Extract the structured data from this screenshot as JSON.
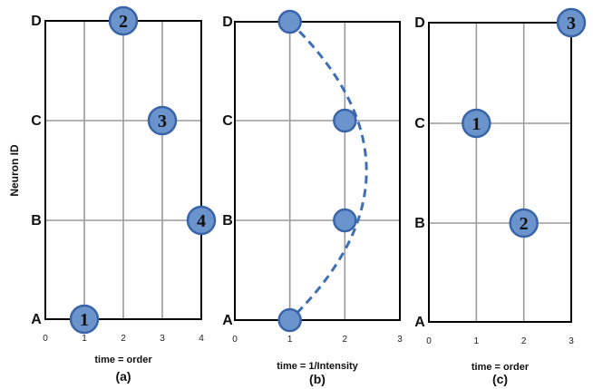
{
  "y_axis_title": "Neuron ID",
  "neurons": [
    "A",
    "B",
    "C",
    "D"
  ],
  "panels": [
    {
      "id": "a",
      "sublabel": "(a)",
      "xlabel": "time = order",
      "x_ticks": [
        "0",
        "1",
        "2",
        "3",
        "4"
      ],
      "x_range": [
        0,
        4
      ],
      "spikes": [
        {
          "neuron": "A",
          "x": 1,
          "label": "1"
        },
        {
          "neuron": "D",
          "x": 2,
          "label": "2"
        },
        {
          "neuron": "C",
          "x": 3,
          "label": "3"
        },
        {
          "neuron": "B",
          "x": 4,
          "label": "4"
        }
      ]
    },
    {
      "id": "b",
      "sublabel": "(b)",
      "xlabel": "time = 1/Intensity",
      "x_ticks": [
        "0",
        "1",
        "2",
        "3"
      ],
      "x_range": [
        0,
        3
      ],
      "curve": "dashed",
      "spikes": [
        {
          "neuron": "A",
          "x": 1,
          "label": ""
        },
        {
          "neuron": "B",
          "x": 2,
          "label": ""
        },
        {
          "neuron": "C",
          "x": 2,
          "label": ""
        },
        {
          "neuron": "D",
          "x": 1,
          "label": ""
        }
      ]
    },
    {
      "id": "c",
      "sublabel": "(c)",
      "xlabel": "time = order",
      "x_ticks": [
        "0",
        "1",
        "2",
        "3"
      ],
      "x_range": [
        0,
        3
      ],
      "spikes": [
        {
          "neuron": "C",
          "x": 1,
          "label": "1"
        },
        {
          "neuron": "B",
          "x": 2,
          "label": "2"
        },
        {
          "neuron": "D",
          "x": 3,
          "label": "3"
        }
      ]
    }
  ],
  "colors": {
    "spike_fill": "#6b93cc",
    "spike_stroke": "#3a64a8",
    "grid": "#9a9a9a",
    "dash": "#3e6fb2"
  }
}
